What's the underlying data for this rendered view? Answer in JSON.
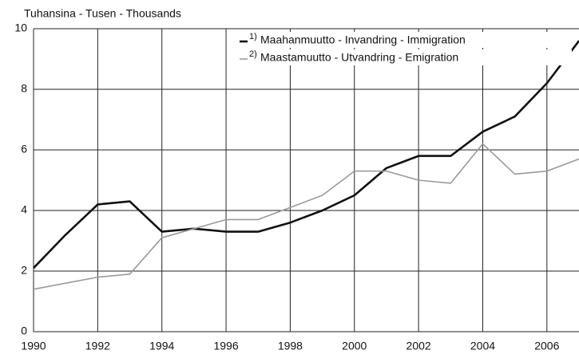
{
  "chart_data": {
    "type": "line",
    "y_label": "Tuhansina - Tusen - Thousands",
    "x": [
      1990,
      1991,
      1992,
      1993,
      1994,
      1995,
      1996,
      1997,
      1998,
      1999,
      2000,
      2001,
      2002,
      2003,
      2004,
      2005,
      2006,
      2007
    ],
    "series": [
      {
        "name": "Maahanmuutto - Invandring - Immigration",
        "note": "1)",
        "color": "#111111",
        "values": [
          2.1,
          3.2,
          4.2,
          4.3,
          3.3,
          3.4,
          3.3,
          3.3,
          3.6,
          4.0,
          4.5,
          5.4,
          5.8,
          5.8,
          6.6,
          7.1,
          8.2,
          9.6
        ]
      },
      {
        "name": "Maastamuutto - Utvandring - Emigration",
        "note": "2)",
        "color": "#9a9a9a",
        "values": [
          1.4,
          1.6,
          1.8,
          1.9,
          3.1,
          3.4,
          3.7,
          3.7,
          4.1,
          4.5,
          5.3,
          5.3,
          5.0,
          4.9,
          6.2,
          5.2,
          5.3,
          5.7
        ]
      }
    ],
    "xlim": [
      1990,
      2007
    ],
    "ylim": [
      0,
      10
    ],
    "xticks": [
      1990,
      1992,
      1994,
      1996,
      1998,
      2000,
      2002,
      2004,
      2006
    ],
    "yticks": [
      0,
      2,
      4,
      6,
      8,
      10
    ],
    "grid": true,
    "legend": "top-right"
  }
}
